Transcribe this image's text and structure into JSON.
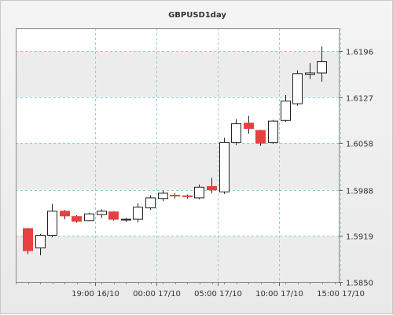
{
  "chart_data": {
    "type": "candlestick",
    "title": "GBPUSD1day",
    "ylim": [
      1.585,
      1.623
    ],
    "y_ticks": [
      "1.6196",
      "1.6127",
      "1.6058",
      "1.5988",
      "1.5919",
      "1.5850"
    ],
    "x_ticks": [
      {
        "label": "19:00 16/10",
        "index": 5.5
      },
      {
        "label": "00:00 17/10",
        "index": 10.5
      },
      {
        "label": "05:00 17/10",
        "index": 15.5
      },
      {
        "label": "10:00 17/10",
        "index": 20.5
      },
      {
        "label": "15:00 17/10",
        "index": 25.5
      }
    ],
    "grid": true,
    "colors": {
      "up_fill": "#ffffff",
      "down_fill": "#e84040",
      "wick": "#222222",
      "grid": "#8fd0d0",
      "band": "#ececec"
    },
    "candles": [
      {
        "o": 1.593,
        "h": 1.5931,
        "l": 1.5892,
        "c": 1.5897
      },
      {
        "o": 1.5901,
        "h": 1.5922,
        "l": 1.589,
        "c": 1.592
      },
      {
        "o": 1.592,
        "h": 1.5967,
        "l": 1.5917,
        "c": 1.5956
      },
      {
        "o": 1.5956,
        "h": 1.5958,
        "l": 1.5944,
        "c": 1.5949
      },
      {
        "o": 1.5948,
        "h": 1.595,
        "l": 1.5939,
        "c": 1.5941
      },
      {
        "o": 1.5942,
        "h": 1.5954,
        "l": 1.5941,
        "c": 1.5952
      },
      {
        "o": 1.5951,
        "h": 1.5959,
        "l": 1.5946,
        "c": 1.5956
      },
      {
        "o": 1.5955,
        "h": 1.5956,
        "l": 1.5942,
        "c": 1.5944
      },
      {
        "o": 1.5943,
        "h": 1.5946,
        "l": 1.594,
        "c": 1.5944
      },
      {
        "o": 1.5944,
        "h": 1.5968,
        "l": 1.5939,
        "c": 1.5962
      },
      {
        "o": 1.5961,
        "h": 1.598,
        "l": 1.5958,
        "c": 1.5976
      },
      {
        "o": 1.5975,
        "h": 1.5987,
        "l": 1.5971,
        "c": 1.5983
      },
      {
        "o": 1.598,
        "h": 1.5983,
        "l": 1.5975,
        "c": 1.5979
      },
      {
        "o": 1.5979,
        "h": 1.5981,
        "l": 1.5975,
        "c": 1.5978
      },
      {
        "o": 1.5976,
        "h": 1.5996,
        "l": 1.5974,
        "c": 1.5992
      },
      {
        "o": 1.5993,
        "h": 1.6006,
        "l": 1.5983,
        "c": 1.5988
      },
      {
        "o": 1.5985,
        "h": 1.6066,
        "l": 1.5982,
        "c": 1.6059
      },
      {
        "o": 1.6059,
        "h": 1.6094,
        "l": 1.6055,
        "c": 1.6087
      },
      {
        "o": 1.6088,
        "h": 1.6099,
        "l": 1.6072,
        "c": 1.608
      },
      {
        "o": 1.6077,
        "h": 1.6078,
        "l": 1.6054,
        "c": 1.6058
      },
      {
        "o": 1.6059,
        "h": 1.6093,
        "l": 1.6057,
        "c": 1.6091
      },
      {
        "o": 1.6092,
        "h": 1.613,
        "l": 1.609,
        "c": 1.6121
      },
      {
        "o": 1.6117,
        "h": 1.6167,
        "l": 1.6114,
        "c": 1.6162
      },
      {
        "o": 1.6161,
        "h": 1.6178,
        "l": 1.6154,
        "c": 1.6163
      },
      {
        "o": 1.6163,
        "h": 1.6203,
        "l": 1.615,
        "c": 1.618
      }
    ]
  }
}
